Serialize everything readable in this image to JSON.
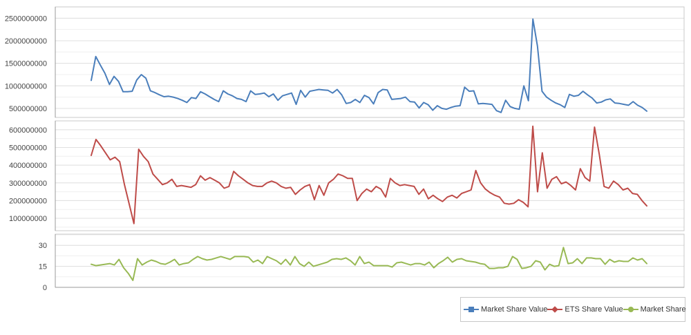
{
  "chart_data": {
    "type": "line",
    "panes": [
      {
        "series": "Market Share Value",
        "color": "#4a7ebb",
        "ylim": [
          300000000,
          2750000000
        ],
        "yticks": [
          500000000,
          1000000000,
          1500000000,
          2000000000,
          2500000000
        ],
        "ytick_labels": [
          "500000000",
          "1000000000",
          "1500000000",
          "2000000000",
          "2500000000"
        ],
        "values": [
          1120000000,
          1650000000,
          1460000000,
          1280000000,
          1030000000,
          1210000000,
          1100000000,
          870000000,
          870000000,
          880000000,
          1130000000,
          1250000000,
          1170000000,
          890000000,
          850000000,
          800000000,
          760000000,
          770000000,
          750000000,
          720000000,
          680000000,
          630000000,
          740000000,
          720000000,
          870000000,
          820000000,
          760000000,
          700000000,
          650000000,
          890000000,
          820000000,
          780000000,
          720000000,
          700000000,
          650000000,
          890000000,
          810000000,
          820000000,
          840000000,
          760000000,
          820000000,
          680000000,
          780000000,
          810000000,
          840000000,
          590000000,
          900000000,
          750000000,
          880000000,
          900000000,
          920000000,
          910000000,
          900000000,
          840000000,
          920000000,
          800000000,
          610000000,
          630000000,
          700000000,
          630000000,
          790000000,
          740000000,
          600000000,
          850000000,
          920000000,
          910000000,
          700000000,
          710000000,
          720000000,
          750000000,
          650000000,
          640000000,
          510000000,
          630000000,
          580000000,
          460000000,
          560000000,
          500000000,
          480000000,
          520000000,
          550000000,
          560000000,
          970000000,
          880000000,
          890000000,
          600000000,
          610000000,
          600000000,
          590000000,
          450000000,
          410000000,
          680000000,
          540000000,
          500000000,
          480000000,
          1000000000,
          670000000,
          2480000000,
          1880000000,
          880000000,
          750000000,
          680000000,
          620000000,
          580000000,
          520000000,
          810000000,
          770000000,
          790000000,
          880000000,
          800000000,
          730000000,
          620000000,
          640000000,
          690000000,
          710000000,
          620000000,
          610000000,
          590000000,
          570000000,
          650000000,
          570000000,
          520000000,
          440000000
        ]
      },
      {
        "series": "ETS Share Value",
        "color": "#be4b48",
        "ylim": [
          30000000,
          650000000
        ],
        "yticks": [
          100000000,
          200000000,
          300000000,
          400000000,
          500000000,
          600000000
        ],
        "ytick_labels": [
          "100000000",
          "200000000",
          "300000000",
          "400000000",
          "500000000",
          "600000000"
        ],
        "values": [
          455000000,
          545000000,
          510000000,
          470000000,
          430000000,
          445000000,
          420000000,
          290000000,
          180000000,
          70000000,
          490000000,
          450000000,
          420000000,
          350000000,
          320000000,
          290000000,
          300000000,
          320000000,
          280000000,
          285000000,
          280000000,
          275000000,
          290000000,
          340000000,
          315000000,
          330000000,
          315000000,
          300000000,
          270000000,
          280000000,
          365000000,
          340000000,
          320000000,
          300000000,
          285000000,
          280000000,
          280000000,
          300000000,
          310000000,
          300000000,
          280000000,
          270000000,
          275000000,
          235000000,
          260000000,
          280000000,
          290000000,
          205000000,
          285000000,
          230000000,
          300000000,
          320000000,
          350000000,
          340000000,
          325000000,
          325000000,
          200000000,
          240000000,
          265000000,
          250000000,
          280000000,
          265000000,
          220000000,
          325000000,
          300000000,
          285000000,
          290000000,
          285000000,
          280000000,
          235000000,
          265000000,
          210000000,
          230000000,
          210000000,
          195000000,
          220000000,
          230000000,
          215000000,
          240000000,
          250000000,
          260000000,
          370000000,
          300000000,
          265000000,
          245000000,
          230000000,
          220000000,
          185000000,
          180000000,
          185000000,
          205000000,
          190000000,
          165000000,
          620000000,
          250000000,
          470000000,
          270000000,
          320000000,
          335000000,
          295000000,
          305000000,
          285000000,
          260000000,
          380000000,
          330000000,
          310000000,
          615000000,
          460000000,
          280000000,
          270000000,
          310000000,
          290000000,
          260000000,
          270000000,
          240000000,
          235000000,
          200000000,
          170000000
        ]
      },
      {
        "series": "Market Share",
        "color": "#98b954",
        "ylim": [
          0,
          38
        ],
        "yticks": [
          0,
          15,
          30
        ],
        "ytick_labels": [
          "0",
          "15",
          "30"
        ],
        "values": [
          16.5,
          15.5,
          16,
          16.5,
          17,
          16,
          20,
          14,
          10,
          5,
          20.5,
          16,
          18,
          19.5,
          18.5,
          17,
          16.5,
          18,
          20,
          16,
          17,
          17.5,
          20,
          22,
          20.5,
          19.5,
          20,
          21,
          22,
          21,
          20,
          22,
          22,
          22,
          21.5,
          18,
          19.5,
          17,
          22,
          20.5,
          19,
          16.5,
          20,
          16,
          22,
          17,
          15,
          18,
          15,
          16,
          17,
          18,
          20,
          20.5,
          20,
          21,
          19,
          16,
          22,
          17,
          18,
          15.5,
          15.5,
          15.5,
          15.5,
          14.5,
          17.5,
          18,
          17,
          16,
          17,
          17,
          16,
          18,
          14,
          17,
          19,
          21.5,
          18,
          20,
          20.5,
          19,
          18.5,
          18,
          17,
          16.5,
          13.5,
          13.5,
          14,
          14,
          15,
          22,
          20,
          13.5,
          14,
          15,
          19,
          18,
          12.5,
          16.5,
          15,
          15.5,
          28.5,
          17,
          17.5,
          20.5,
          17,
          21,
          21,
          20.5,
          20.5,
          16.5,
          20,
          18,
          19,
          18.5,
          18.5,
          21,
          19.5,
          20.5,
          17
        ]
      }
    ],
    "legend": {
      "placement": "bottom-right",
      "items": [
        {
          "label": "Market Share Value",
          "color": "#4a7ebb",
          "marker": "square"
        },
        {
          "label": "ETS Share Value",
          "color": "#be4b48",
          "marker": "diamond"
        },
        {
          "label": "Market Share",
          "color": "#98b954",
          "marker": "circle"
        }
      ]
    },
    "grid": true
  }
}
